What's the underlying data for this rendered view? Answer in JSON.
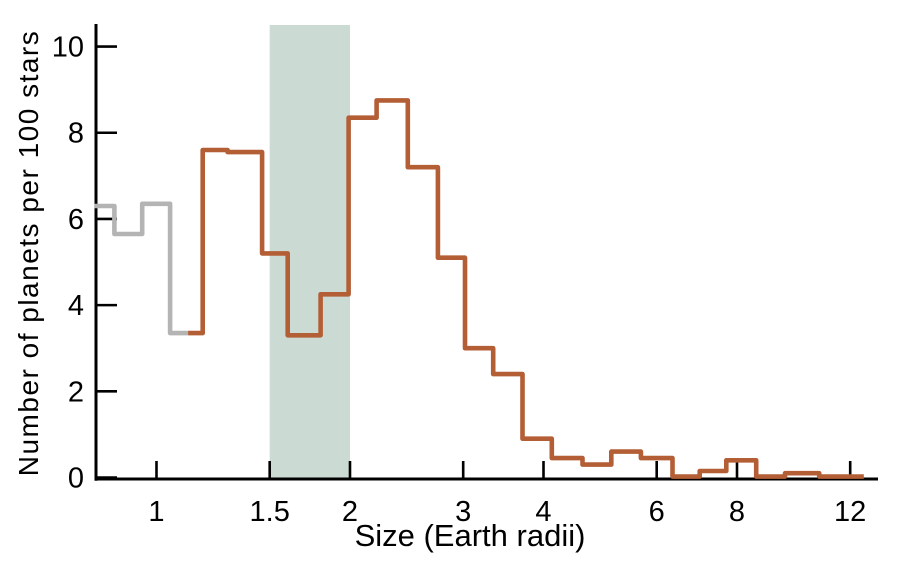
{
  "chart_data": {
    "type": "step-histogram",
    "title": "",
    "xlabel": "Size (Earth radii)",
    "ylabel": "Number of planets per 100 stars",
    "x_scale": "log",
    "xlim": [
      0.8,
      13.4
    ],
    "ylim": [
      0,
      10.5
    ],
    "grid": false,
    "legend": "none",
    "x_ticks": [
      1,
      1.5,
      2,
      3,
      4,
      6,
      8,
      12
    ],
    "y_ticks": [
      0,
      2,
      4,
      6,
      8,
      10
    ],
    "bin_edges": [
      0.8,
      0.86,
      0.95,
      1.05,
      1.18,
      1.29,
      1.46,
      1.6,
      1.8,
      1.99,
      2.2,
      2.46,
      2.74,
      3.02,
      3.34,
      3.71,
      4.12,
      4.6,
      5.1,
      5.67,
      6.35,
      7.0,
      7.7,
      8.57,
      9.5,
      10.74,
      12.6
    ],
    "heights": [
      6.3,
      5.65,
      6.35,
      3.35,
      7.6,
      7.55,
      5.2,
      3.3,
      4.25,
      8.35,
      8.75,
      7.2,
      5.1,
      3.0,
      2.4,
      0.9,
      0.45,
      0.3,
      0.6,
      0.45,
      0.02,
      0.15,
      0.4,
      0.02,
      0.1,
      0.02
    ],
    "gray_segment_max_size": 1.12,
    "shaded_band": {
      "from": 1.5,
      "to": 2.0
    },
    "colors": {
      "histogram_line": "#b45e36",
      "histogram_incomplete_line": "#b4b4b4",
      "shaded_band": "#cbdad2",
      "axis": "#000000",
      "background": "#ffffff"
    }
  }
}
